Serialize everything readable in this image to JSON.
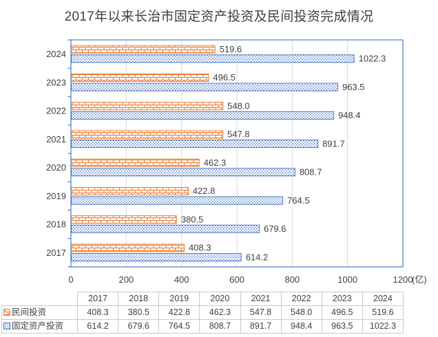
{
  "colors": {
    "private_series": "#ED7D31",
    "fixed_series": "#4472C4",
    "plot_border": "#4C7CC0",
    "gridline": "#D9D9D9",
    "text": "#404040",
    "table_border": "#C9C9C9"
  },
  "chart_data": {
    "type": "bar",
    "orientation": "horizontal",
    "title": "2017年以来长治市固定资产投资及民间投资完成情况",
    "categories": [
      "2017",
      "2018",
      "2019",
      "2020",
      "2021",
      "2022",
      "2023",
      "2024"
    ],
    "category_display_order": "top-to-bottom descending (2024 at top, 2017 at bottom)",
    "series": [
      {
        "key": "private-investment",
        "name": "民间投资",
        "color": "#ED7D31",
        "pattern": "brick",
        "values": [
          408.3,
          380.5,
          422.8,
          462.3,
          547.8,
          548.0,
          496.5,
          519.6
        ]
      },
      {
        "key": "fixed-asset-investment",
        "name": "固定资产投资",
        "color": "#4472C4",
        "pattern": "dots",
        "values": [
          614.2,
          679.6,
          764.5,
          808.7,
          891.7,
          948.4,
          963.5,
          1022.3
        ]
      }
    ],
    "xlim": [
      0,
      1200
    ],
    "x_ticks": [
      0,
      200,
      400,
      600,
      800,
      1000,
      1200
    ],
    "x_unit_label": "(亿)",
    "data_labels": "shown at bar ends, 1 decimal",
    "gridlines": "vertical only",
    "legend_position": "data table below chart"
  }
}
